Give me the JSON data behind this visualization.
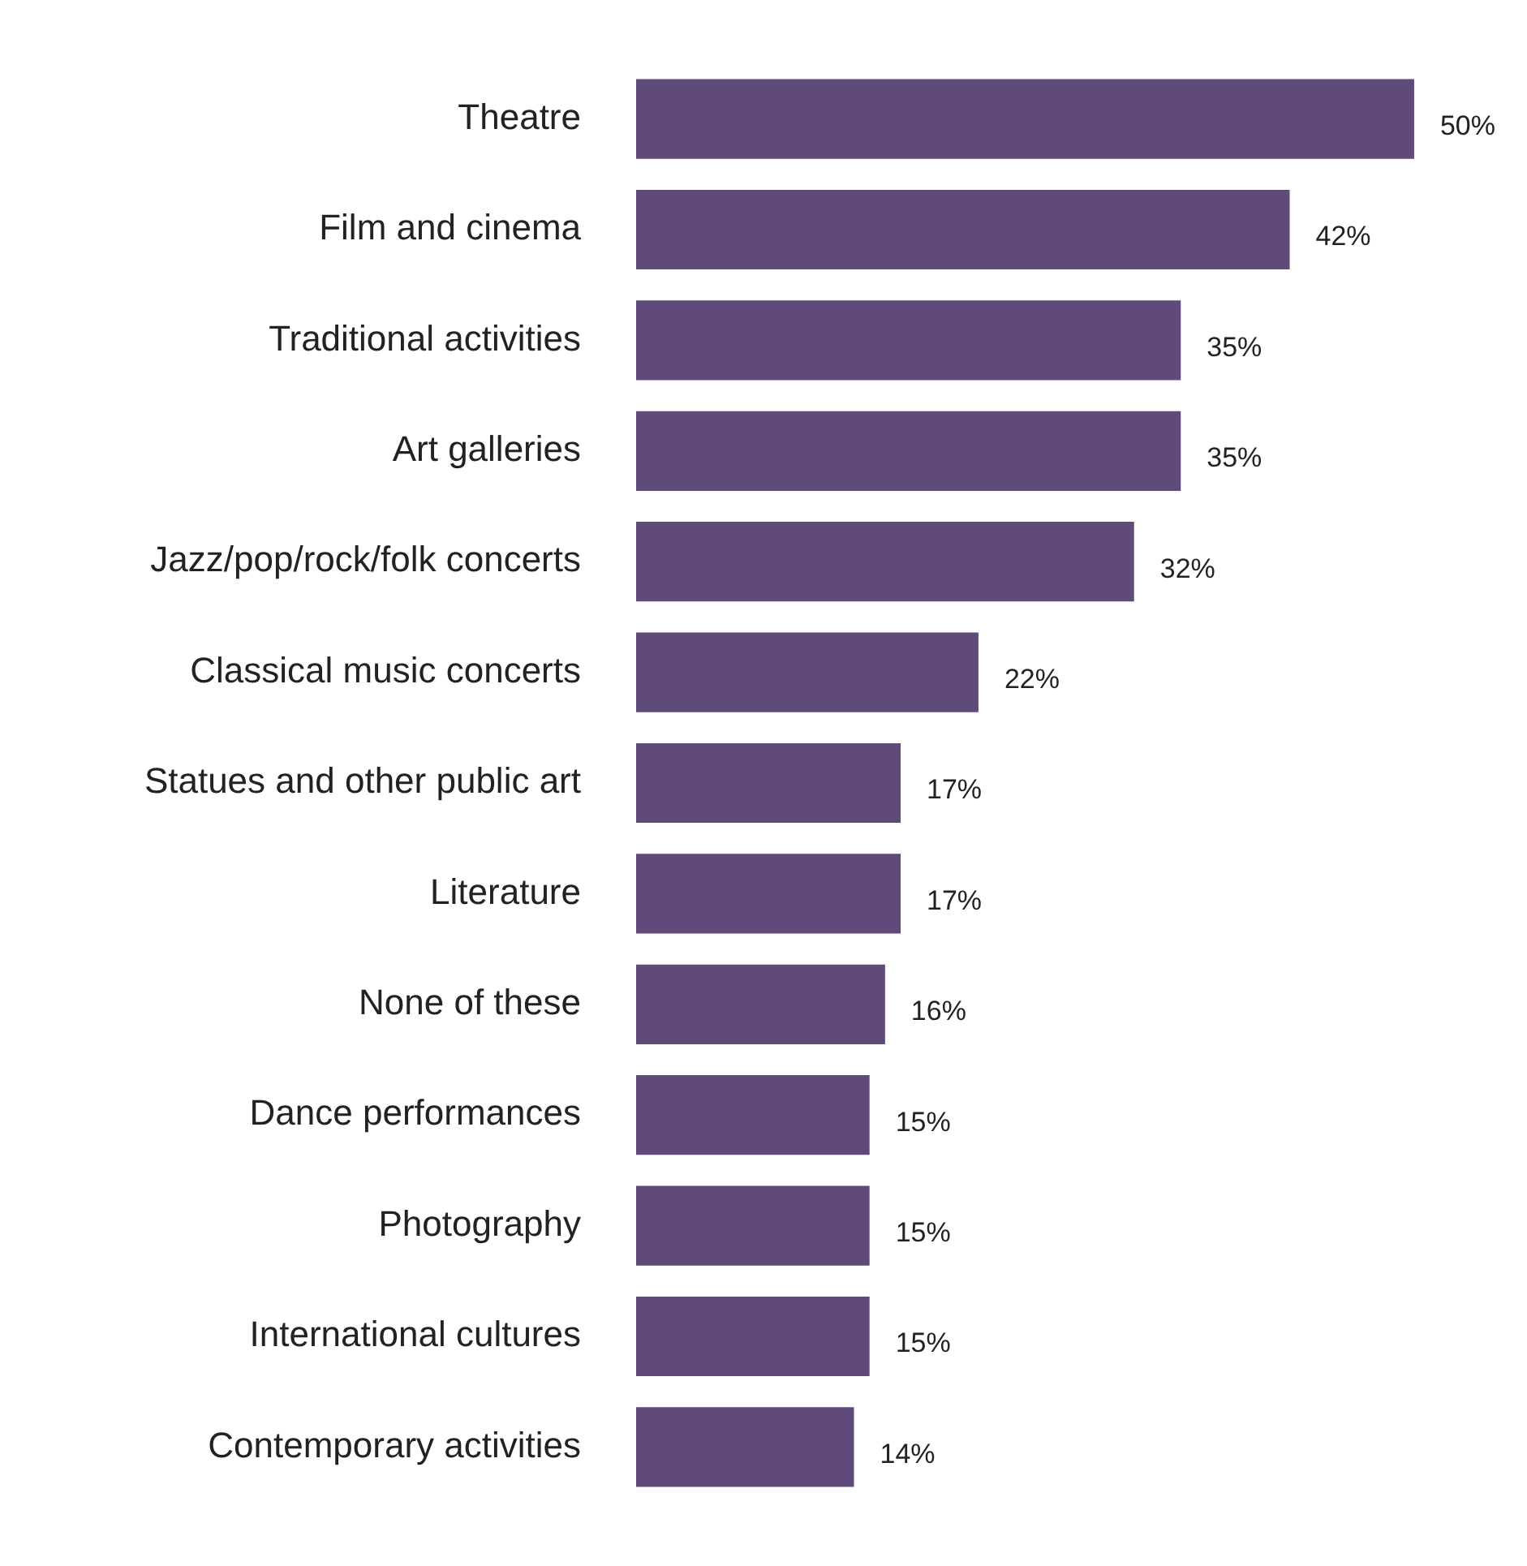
{
  "chart_data": {
    "type": "bar",
    "orientation": "horizontal",
    "categories": [
      "Theatre",
      "Film and cinema",
      "Traditional activities",
      "Art galleries",
      "Jazz/pop/rock/folk concerts",
      "Classical music concerts",
      "Statues and other public art",
      "Literature",
      "None of these",
      "Dance performances",
      "Photography",
      "International cultures",
      "Contemporary activities"
    ],
    "values": [
      50,
      42,
      35,
      35,
      32,
      22,
      17,
      17,
      16,
      15,
      15,
      15,
      14
    ],
    "value_labels": [
      "50%",
      "42%",
      "35%",
      "35%",
      "32%",
      "22%",
      "17%",
      "17%",
      "16%",
      "15%",
      "15%",
      "15%",
      "14%"
    ],
    "color": "#5f4a7a",
    "legend": false,
    "tick_labels": "y"
  }
}
